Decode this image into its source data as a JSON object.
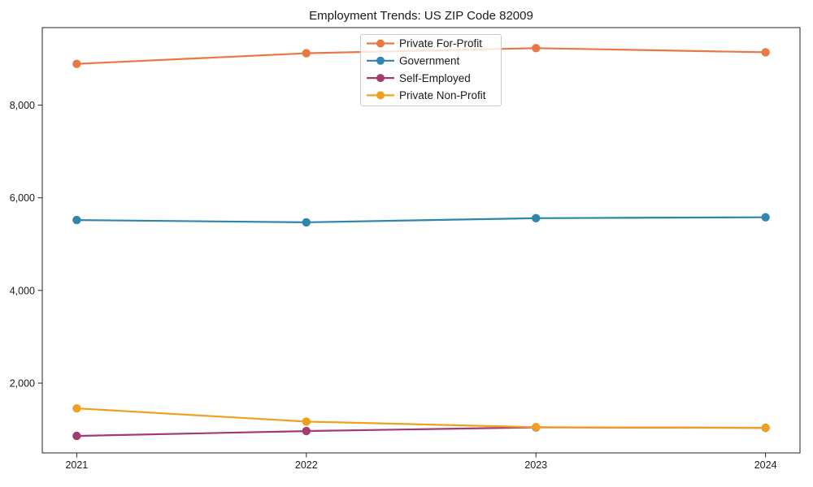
{
  "figure": {
    "background": "#ffffff",
    "spine_color": "#262626",
    "legend_border_color": "#c9c9c9",
    "legend_bg": "rgba(255,255,255,0.8)"
  },
  "chart_data": {
    "type": "line",
    "title": "Employment Trends: US ZIP Code 82009",
    "x": [
      2021,
      2022,
      2023,
      2024
    ],
    "x_tick_labels": [
      "2021",
      "2022",
      "2023",
      "2024"
    ],
    "xlim": [
      2020.85,
      2024.15
    ],
    "ylim": [
      494,
      9673
    ],
    "y_ticks": [
      {
        "value": 2000,
        "label": "2,000"
      },
      {
        "value": 4000,
        "label": "4,000"
      },
      {
        "value": 6000,
        "label": "6,000"
      },
      {
        "value": 8000,
        "label": "8,000"
      }
    ],
    "grid": false,
    "marker": "circle",
    "legend_position": "top-center",
    "series": [
      {
        "name": "Private For-Profit",
        "color": "#e87845",
        "values": [
          8890,
          9120,
          9230,
          9140
        ]
      },
      {
        "name": "Government",
        "color": "#2e86ab",
        "values": [
          5520,
          5470,
          5560,
          5580
        ]
      },
      {
        "name": "Self-Employed",
        "color": "#a23b72",
        "values": [
          860,
          965,
          1045,
          1035
        ]
      },
      {
        "name": "Private Non-Profit",
        "color": "#f0a01e",
        "values": [
          1455,
          1170,
          1050,
          1035
        ]
      }
    ]
  }
}
